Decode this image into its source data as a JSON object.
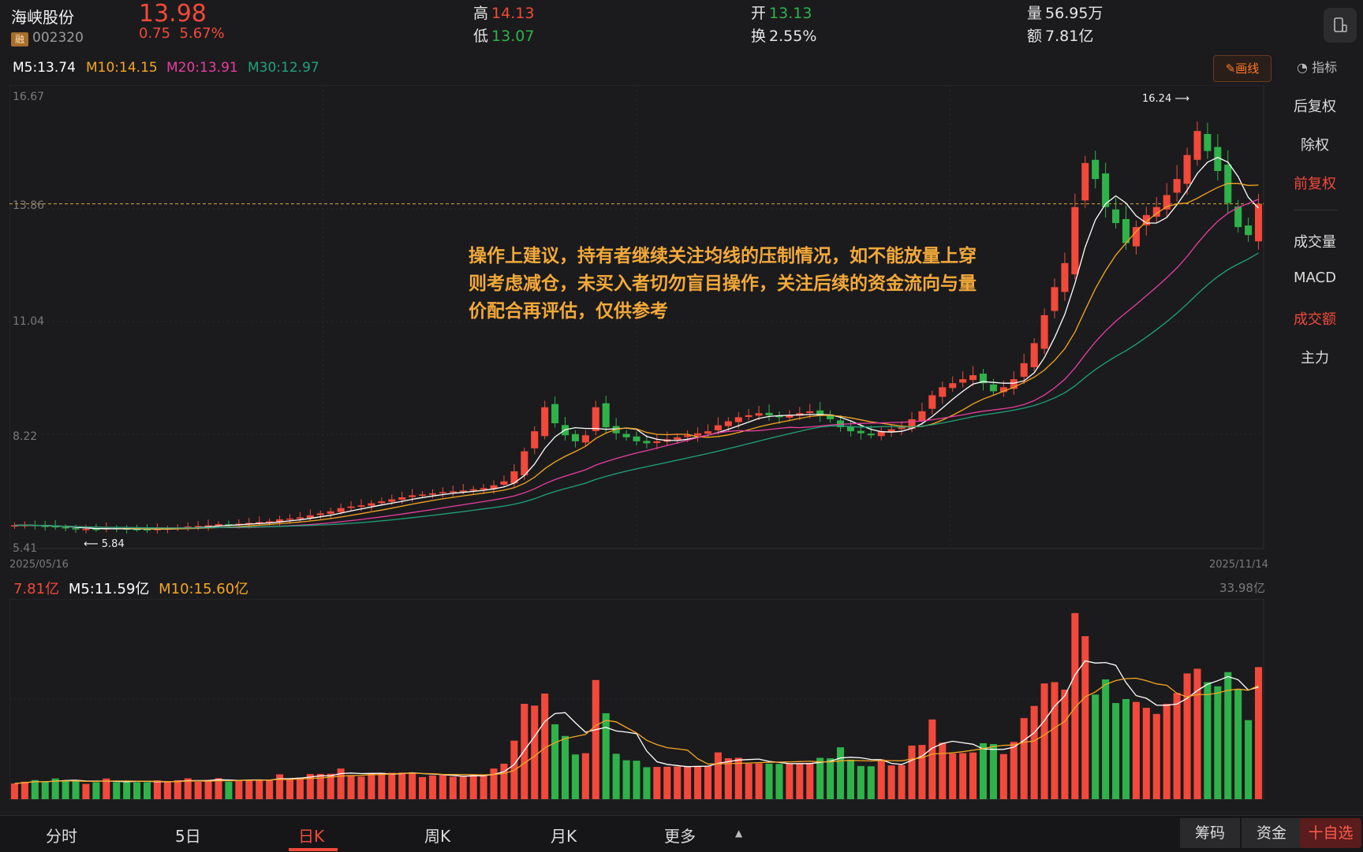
{
  "header": {
    "name": "海峡股份",
    "rong": "融",
    "code": "002320",
    "price": "13.98",
    "change": "0.75",
    "change_pct": "5.67%",
    "high_label": "高",
    "high": "14.13",
    "low_label": "低",
    "low": "13.07",
    "open_label": "开",
    "open": "13.13",
    "turnover_label": "换",
    "turnover": "2.55%",
    "volume_label": "量",
    "volume": "56.95万",
    "amount_label": "额",
    "amount": "7.81亿"
  },
  "ma_legend": {
    "m5": "M5:13.74",
    "m10": "M10:14.15",
    "m20": "M20:13.91",
    "m30": "M30:12.97"
  },
  "draw_button": "画线",
  "indicator_label": "指标",
  "right_menu": [
    "后复权",
    "除权",
    "前复权",
    "成交量",
    "MACD",
    "成交额",
    "主力"
  ],
  "chart_data": {
    "type": "candlestick",
    "x_start": "2025/05/16",
    "x_end": "2025/11/14",
    "y_ticks": [
      "16.67",
      "13.86",
      "11.04",
      "8.22",
      "5.41"
    ],
    "ylim": [
      5.41,
      16.67
    ],
    "max_marker": "16.24",
    "min_marker": "5.84",
    "current_price_line": 13.98,
    "closes": [
      5.95,
      5.96,
      5.94,
      5.93,
      5.9,
      5.88,
      5.86,
      5.86,
      5.85,
      5.88,
      5.87,
      5.86,
      5.85,
      5.84,
      5.86,
      5.87,
      5.89,
      5.92,
      5.93,
      5.95,
      5.98,
      5.97,
      5.99,
      6.01,
      6.03,
      6.05,
      6.1,
      6.12,
      6.15,
      6.2,
      6.25,
      6.3,
      6.38,
      6.42,
      6.45,
      6.5,
      6.55,
      6.6,
      6.65,
      6.7,
      6.72,
      6.75,
      6.78,
      6.8,
      6.82,
      6.85,
      6.88,
      6.95,
      7.05,
      7.3,
      7.8,
      8.3,
      8.9,
      8.5,
      8.2,
      8.05,
      8.2,
      8.9,
      8.4,
      8.25,
      8.15,
      8.05,
      8.0,
      8.05,
      8.1,
      8.15,
      8.2,
      8.25,
      8.3,
      8.45,
      8.55,
      8.65,
      8.7,
      8.75,
      8.7,
      8.65,
      8.7,
      8.75,
      8.8,
      8.7,
      8.6,
      8.4,
      8.3,
      8.25,
      8.2,
      8.3,
      8.35,
      8.4,
      8.6,
      8.8,
      9.2,
      9.4,
      9.5,
      9.6,
      9.7,
      9.5,
      9.3,
      9.4,
      9.6,
      10.0,
      10.5,
      11.2,
      11.9,
      12.5,
      13.9,
      15.0,
      14.6,
      13.9,
      13.5,
      13.0,
      13.4,
      13.7,
      13.9,
      14.2,
      14.6,
      15.2,
      15.8,
      15.3,
      14.8,
      14.0,
      13.4,
      13.2,
      13.98
    ],
    "ma5": [
      13.74
    ],
    "ma10": [
      14.15
    ],
    "ma20": [
      13.91
    ],
    "ma30": [
      12.97
    ]
  },
  "annotation": "操作上建议，持有者继续关注均线的压制情况，如不能放量上穿则考虑减仓，未买入者切勿盲目操作，关注后续的资金流向与量价配合再评估，仅供参考",
  "volume": {
    "current": "7.81亿",
    "m5": "M5:11.59亿",
    "m10": "M10:15.60亿",
    "max_label": "33.98亿",
    "ymax": 33.98
  },
  "bottom_tabs": [
    "分时",
    "5日",
    "日K",
    "周K",
    "月K",
    "更多"
  ],
  "bottom_buttons": {
    "chips": "筹码",
    "funds": "资金",
    "watch": "十自选"
  },
  "colors": {
    "up": "#f2493b",
    "down": "#2fb24a",
    "ma5": "#ffffff",
    "ma10": "#f5a623",
    "ma20": "#e83ea0",
    "ma30": "#1fa37a",
    "accent": "#ff7a2e"
  }
}
